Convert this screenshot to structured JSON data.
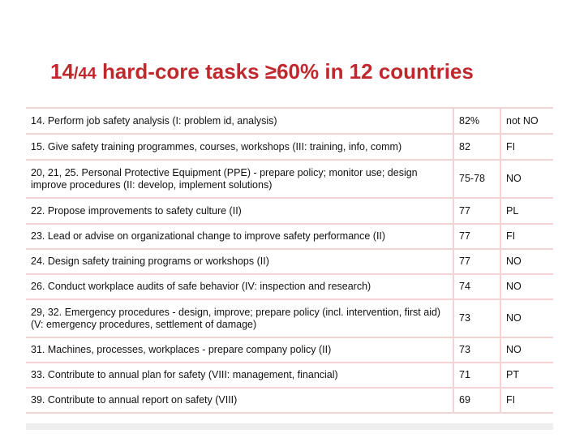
{
  "title": {
    "count": "14",
    "fraction": "/44",
    "text": " hard-core tasks ≥60% in 12 countries"
  },
  "rows": [
    {
      "task": "14. Perform job safety analysis (I: problem id, analysis)",
      "pct": "82%",
      "country": "not NO"
    },
    {
      "task": "15. Give safety training programmes, courses, workshops (III: training, info, comm)",
      "pct": "82",
      "country": "FI"
    },
    {
      "task": "20, 21, 25. Personal Protective Equipment (PPE) - prepare policy; monitor use; design improve procedures (II: develop, implement solutions)",
      "pct": "75-78",
      "country": "NO"
    },
    {
      "task": "22. Propose improvements to safety culture (II)",
      "pct": "77",
      "country": "PL"
    },
    {
      "task": "23. Lead or advise on organizational change to improve safety performance (II)",
      "pct": "77",
      "country": "FI"
    },
    {
      "task": "24. Design safety training programs or workshops (II)",
      "pct": "77",
      "country": "NO"
    },
    {
      "task": "26. Conduct workplace audits of safe behavior (IV: inspection and research)",
      "pct": "74",
      "country": "NO"
    },
    {
      "task": "29, 32. Emergency procedures - design, improve; prepare policy (incl. intervention, first aid) (V: emergency procedures, settlement of damage)",
      "pct": "73",
      "country": "NO"
    },
    {
      "task": "31. Machines, processes, workplaces - prepare company policy (II)",
      "pct": "73",
      "country": "NO"
    },
    {
      "task": "33. Contribute to annual plan for safety (VIII: management, financial)",
      "pct": "71",
      "country": "PT"
    },
    {
      "task": "39. Contribute to annual report on safety (VIII)",
      "pct": "69",
      "country": "FI"
    }
  ]
}
